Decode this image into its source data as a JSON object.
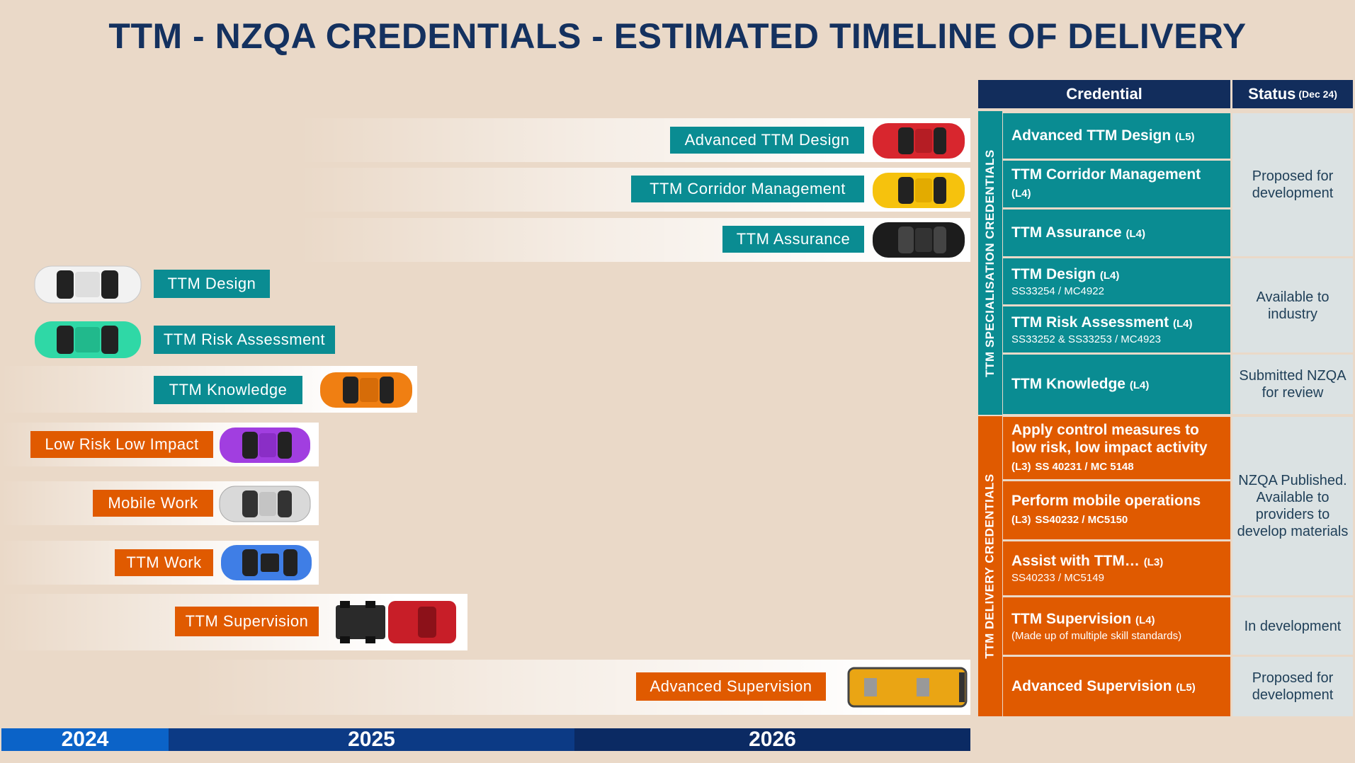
{
  "title": "TTM - NZQA CREDENTIALS - ESTIMATED TIMELINE OF DELIVERY",
  "timeline": {
    "lanes": [
      {
        "label": "Advanced TTM Design",
        "color": "#0a8c92",
        "car_color": "#d8262e"
      },
      {
        "label": "TTM Corridor Management",
        "color": "#0a8c92",
        "car_color": "#f6c20d"
      },
      {
        "label": "TTM Assurance",
        "color": "#0a8c92",
        "car_color": "#1c1c1c"
      },
      {
        "label": "TTM Design",
        "color": "#0a8c92",
        "car_color": "#f2f2f2"
      },
      {
        "label": "TTM Risk Assessment",
        "color": "#0a8c92",
        "car_color": "#2fd8a6"
      },
      {
        "label": "TTM Knowledge",
        "color": "#0a8c92",
        "car_color": "#f07f12"
      },
      {
        "label": "Low Risk Low Impact",
        "color": "#e05a00",
        "car_color": "#a13ee0"
      },
      {
        "label": "Mobile Work",
        "color": "#e05a00",
        "car_color": "#d9d9d9"
      },
      {
        "label": "TTM Work",
        "color": "#e05a00",
        "car_color": "#3f7ee6"
      },
      {
        "label": "TTM Supervision",
        "color": "#e05a00",
        "car_color": "#c81e28"
      },
      {
        "label": "Advanced Supervision",
        "color": "#e05a00",
        "car_color": "#eaa514"
      }
    ],
    "years": [
      "2024",
      "2025",
      "2026"
    ]
  },
  "table": {
    "header_credential": "Credential",
    "header_status": "Status",
    "header_status_note": "(Dec 24)",
    "group_specialisation": "TTM SPECIALISATION CREDENTIALS",
    "group_delivery": "TTM DELIVERY CREDENTIALS",
    "rows": [
      {
        "name": "Advanced TTM Design",
        "level": "(L5)",
        "code": ""
      },
      {
        "name": "TTM Corridor Management",
        "level": "(L4)",
        "code": ""
      },
      {
        "name": "TTM Assurance",
        "level": "(L4)",
        "code": ""
      },
      {
        "name": "TTM Design",
        "level": "(L4)",
        "code": "SS33254 / MC4922"
      },
      {
        "name": "TTM Risk Assessment",
        "level": "(L4)",
        "code": "SS33252 & SS33253 / MC4923"
      },
      {
        "name": "TTM Knowledge",
        "level": "(L4)",
        "code": ""
      },
      {
        "name": "Apply control measures to low risk, low impact activity",
        "level": "(L3)",
        "code": "SS 40231 / MC 5148"
      },
      {
        "name": "Perform mobile operations",
        "level": "(L3)",
        "code": "SS40232 / MC5150"
      },
      {
        "name": "Assist with TTM…",
        "level": "(L3)",
        "code": "SS40233 / MC5149"
      },
      {
        "name": "TTM Supervision",
        "level": "(L4)",
        "code": "(Made up of multiple skill standards)"
      },
      {
        "name": "Advanced Supervision",
        "level": "(L5)",
        "code": ""
      }
    ],
    "statuses": [
      "Proposed for development",
      "Available to industry",
      "Submitted NZQA for review",
      "NZQA Published. Available to providers to develop materials",
      "In development",
      "Proposed for development"
    ]
  }
}
